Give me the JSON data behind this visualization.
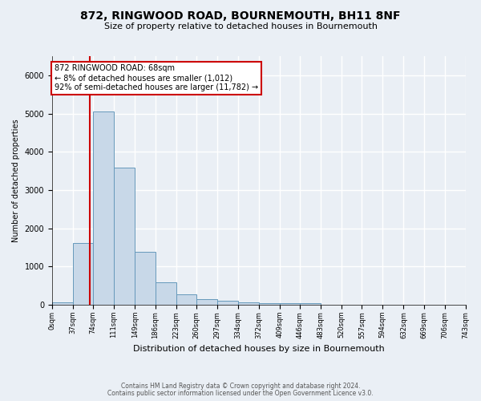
{
  "title": "872, RINGWOOD ROAD, BOURNEMOUTH, BH11 8NF",
  "subtitle": "Size of property relative to detached houses in Bournemouth",
  "xlabel": "Distribution of detached houses by size in Bournemouth",
  "ylabel": "Number of detached properties",
  "footnote1": "Contains HM Land Registry data © Crown copyright and database right 2024.",
  "footnote2": "Contains public sector information licensed under the Open Government Licence v3.0.",
  "bar_edges": [
    0,
    37,
    74,
    111,
    149,
    186,
    223,
    260,
    297,
    334,
    372,
    409,
    446,
    483,
    520,
    557,
    594,
    632,
    669,
    706,
    743
  ],
  "bar_heights": [
    60,
    1620,
    5050,
    3580,
    1390,
    600,
    280,
    140,
    110,
    60,
    50,
    40,
    50,
    0,
    0,
    0,
    0,
    0,
    0,
    0
  ],
  "bar_color": "#c8d8e8",
  "bar_edge_color": "#6699bb",
  "property_line_x": 68,
  "property_line_color": "#cc0000",
  "annotation_text": "872 RINGWOOD ROAD: 68sqm\n← 8% of detached houses are smaller (1,012)\n92% of semi-detached houses are larger (11,782) →",
  "annotation_box_color": "#ffffff",
  "annotation_box_edge": "#cc0000",
  "ylim": [
    0,
    6500
  ],
  "xlim": [
    0,
    743
  ],
  "tick_labels": [
    "0sqm",
    "37sqm",
    "74sqm",
    "111sqm",
    "149sqm",
    "186sqm",
    "223sqm",
    "260sqm",
    "297sqm",
    "334sqm",
    "372sqm",
    "409sqm",
    "446sqm",
    "483sqm",
    "520sqm",
    "557sqm",
    "594sqm",
    "632sqm",
    "669sqm",
    "706sqm",
    "743sqm"
  ],
  "bg_color": "#eaeff5",
  "plot_bg_color": "#eaeff5",
  "grid_color": "#ffffff",
  "title_fontsize": 10,
  "subtitle_fontsize": 8,
  "ylabel_fontsize": 7,
  "xlabel_fontsize": 8,
  "ytick_fontsize": 7,
  "xtick_fontsize": 6,
  "footnote_fontsize": 5.5,
  "annotation_fontsize": 7
}
